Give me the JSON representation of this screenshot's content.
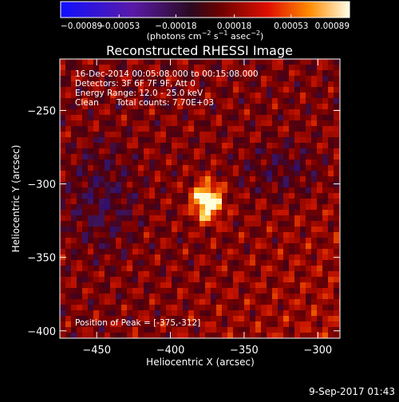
{
  "chart_data": {
    "type": "heatmap",
    "title": "Reconstructed RHESSI Image",
    "xlabel": "Heliocentric X (arcsec)",
    "ylabel": "Heliocentric Y (arcsec)",
    "xlim": [
      -475,
      -285
    ],
    "ylim": [
      -405,
      -215
    ],
    "x_ticks": [
      -450,
      -400,
      -350,
      -300
    ],
    "y_ticks": [
      -250,
      -300,
      -350,
      -400
    ],
    "x_tick_labels": [
      "−450",
      "−400",
      "−350",
      "−300"
    ],
    "y_tick_labels": [
      "−250",
      "−300",
      "−350",
      "−400"
    ],
    "colorbar": {
      "min": -0.00089,
      "max": 0.00089,
      "ticks": [
        -0.00089,
        -0.00053,
        -0.00018,
        0.00018,
        0.00053,
        0.00089
      ],
      "tick_labels": [
        "−0.00089",
        "−0.00053",
        "−0.00018",
        "0.00018",
        "0.00053",
        "0.00089"
      ],
      "unit": "(photons cm",
      "unit_exp1": "−2",
      "unit_mid": " s",
      "unit_exp2": "−1",
      "unit_mid2": " asec",
      "unit_exp3": "−2",
      "unit_end": ")"
    },
    "annotations": [
      "16-Dec-2014 00:05:08.000 to 00:15:08.000",
      "Detectors: 3F 6F 7F 9F, Att 0",
      "Energy Range: 12.0 - 25.0 keV",
      "Clean",
      "Total counts: 7.70E+03"
    ],
    "peak_label": "Position of Peak = [-375,-312]",
    "peak": [
      -375,
      -312
    ],
    "grid": false
  },
  "footer": {
    "timestamp": "9-Sep-2017 01:43"
  }
}
